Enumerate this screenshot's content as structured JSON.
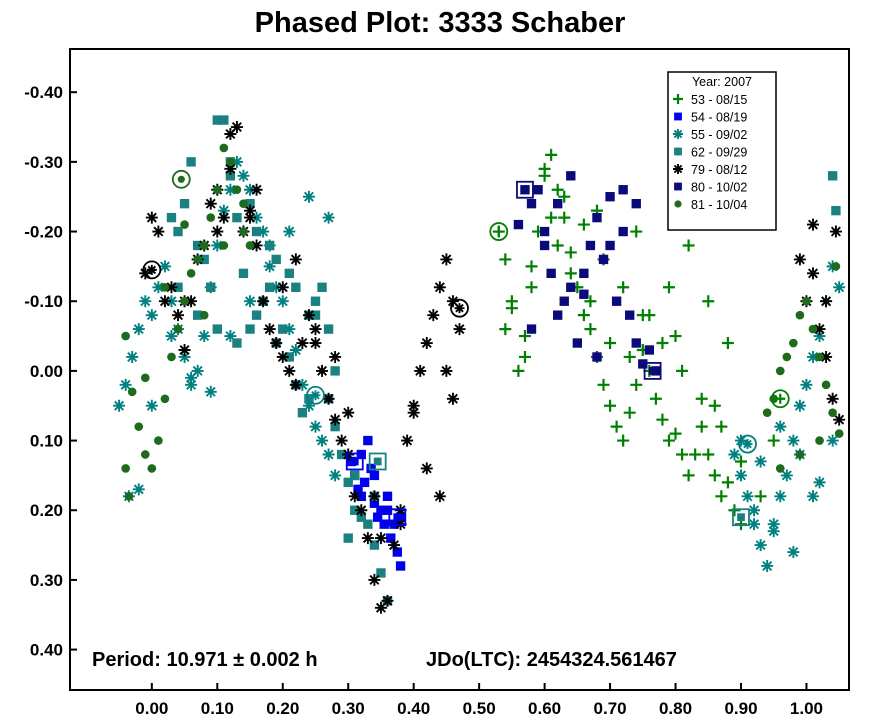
{
  "chart_data": {
    "type": "scatter",
    "title": "Phased Plot: 3333 Schaber",
    "xlabel": "",
    "ylabel": "",
    "xlim": [
      -0.125,
      1.065
    ],
    "ylim": [
      -0.462,
      0.458
    ],
    "y_inverted": true,
    "x_ticks": [
      "0.00",
      "0.10",
      "0.20",
      "0.30",
      "0.40",
      "0.50",
      "0.60",
      "0.70",
      "0.80",
      "0.90",
      "1.00"
    ],
    "y_ticks": [
      "-0.40",
      "-0.30",
      "-0.20",
      "-0.10",
      "0.00",
      "0.10",
      "0.20",
      "0.30",
      "0.40"
    ],
    "x_tick_values": [
      0,
      0.1,
      0.2,
      0.3,
      0.4,
      0.5,
      0.6,
      0.7,
      0.8,
      0.9,
      1.0
    ],
    "y_tick_values": [
      -0.4,
      -0.3,
      -0.2,
      -0.1,
      0,
      0.1,
      0.2,
      0.3,
      0.4
    ],
    "grid": false,
    "legend_position": "top-right",
    "legend_title": "Year: 2007",
    "annotations": {
      "period": "Period: 10.971 ± 0.002 h",
      "epoch": "JDo(LTC): 2454324.561467"
    },
    "series": [
      {
        "name": "53 - 08/15",
        "marker": "plus",
        "color": "#008000",
        "x": [
          0.53,
          0.54,
          0.55,
          0.56,
          0.57,
          0.58,
          0.59,
          0.6,
          0.61,
          0.62,
          0.63,
          0.64,
          0.65,
          0.66,
          0.67,
          0.68,
          0.69,
          0.7,
          0.71,
          0.72,
          0.73,
          0.74,
          0.75,
          0.76,
          0.77,
          0.78,
          0.79,
          0.8,
          0.81,
          0.82,
          0.83,
          0.84,
          0.85,
          0.86,
          0.87,
          0.88,
          0.89,
          0.9,
          0.55,
          0.58,
          0.61,
          0.64,
          0.67,
          0.7,
          0.73,
          0.76,
          0.79,
          0.82,
          0.85,
          0.88,
          0.6,
          0.63,
          0.66,
          0.69,
          0.72,
          0.75,
          0.78,
          0.81,
          0.84,
          0.87,
          0.9,
          0.54,
          0.57,
          0.62,
          0.68,
          0.74,
          0.8,
          0.86,
          0.93,
          0.95
        ],
        "y": [
          -0.2,
          -0.16,
          -0.09,
          0.0,
          -0.05,
          -0.12,
          -0.2,
          -0.28,
          -0.31,
          -0.26,
          -0.22,
          -0.17,
          -0.12,
          -0.08,
          -0.06,
          -0.02,
          0.02,
          0.05,
          0.08,
          0.1,
          0.06,
          0.02,
          -0.03,
          0.0,
          0.04,
          0.07,
          0.1,
          0.09,
          0.12,
          0.15,
          0.12,
          0.08,
          0.12,
          0.15,
          0.18,
          0.16,
          0.2,
          0.22,
          -0.1,
          -0.15,
          -0.22,
          -0.14,
          -0.1,
          -0.04,
          -0.02,
          -0.08,
          -0.12,
          -0.18,
          -0.1,
          -0.04,
          -0.29,
          -0.25,
          -0.21,
          -0.16,
          -0.12,
          -0.08,
          -0.04,
          0.0,
          0.04,
          0.08,
          0.13,
          -0.06,
          -0.02,
          -0.18,
          -0.23,
          -0.2,
          -0.05,
          0.05,
          0.18,
          0.1
        ]
      },
      {
        "name": "54 - 08/19",
        "marker": "square",
        "color": "#0000ee",
        "x": [
          0.305,
          0.31,
          0.315,
          0.32,
          0.325,
          0.33,
          0.335,
          0.34,
          0.345,
          0.35,
          0.355,
          0.36,
          0.365,
          0.37,
          0.375,
          0.38,
          0.32,
          0.34,
          0.36,
          0.38
        ],
        "y": [
          0.13,
          0.15,
          0.17,
          0.18,
          0.16,
          0.1,
          0.14,
          0.19,
          0.21,
          0.2,
          0.22,
          0.2,
          0.24,
          0.22,
          0.26,
          0.28,
          0.12,
          0.15,
          0.18,
          0.21
        ]
      },
      {
        "name": "55 - 09/02",
        "marker": "asterisk",
        "color": "#008080",
        "x": [
          -0.05,
          -0.04,
          -0.03,
          -0.02,
          -0.01,
          0.0,
          0.01,
          0.02,
          0.03,
          0.04,
          0.05,
          0.06,
          0.07,
          0.08,
          0.09,
          0.1,
          0.11,
          0.12,
          0.13,
          0.14,
          0.15,
          0.16,
          0.17,
          0.18,
          0.19,
          0.2,
          0.21,
          0.22,
          0.23,
          0.24,
          0.25,
          0.26,
          0.27,
          0.28,
          -0.035,
          -0.02,
          0.0,
          0.03,
          0.06,
          0.09,
          0.12,
          0.15,
          0.18,
          0.21,
          0.24,
          0.27,
          0.89,
          0.9,
          0.91,
          0.92,
          0.93,
          0.94,
          0.95,
          0.96,
          0.97,
          0.98,
          0.99,
          1.0,
          1.01,
          1.02,
          1.03,
          1.04,
          1.05,
          0.92,
          0.95,
          0.98,
          1.01,
          1.04,
          0.9,
          0.93,
          0.96,
          0.99,
          1.02
        ],
        "y": [
          0.05,
          0.02,
          -0.02,
          -0.06,
          -0.1,
          -0.08,
          -0.12,
          -0.15,
          -0.1,
          -0.06,
          -0.02,
          0.02,
          0.0,
          -0.05,
          -0.12,
          -0.18,
          -0.23,
          -0.26,
          -0.3,
          -0.28,
          -0.26,
          -0.22,
          -0.2,
          -0.18,
          -0.12,
          -0.1,
          -0.06,
          -0.03,
          0.02,
          0.05,
          0.08,
          0.1,
          0.12,
          0.15,
          0.18,
          0.17,
          0.05,
          -0.05,
          0.01,
          0.03,
          -0.05,
          -0.1,
          -0.15,
          -0.2,
          -0.25,
          -0.22,
          0.12,
          0.15,
          0.18,
          0.22,
          0.25,
          0.28,
          0.22,
          0.18,
          0.15,
          0.1,
          0.05,
          0.02,
          -0.02,
          -0.05,
          -0.1,
          -0.15,
          -0.12,
          0.2,
          0.23,
          0.26,
          0.18,
          0.1,
          0.1,
          0.13,
          0.08,
          0.12,
          0.16
        ]
      },
      {
        "name": "62 - 09/29",
        "marker": "square",
        "color": "#1a8080",
        "x": [
          0.03,
          0.04,
          0.05,
          0.06,
          0.07,
          0.08,
          0.09,
          0.1,
          0.11,
          0.12,
          0.13,
          0.14,
          0.15,
          0.16,
          0.17,
          0.18,
          0.19,
          0.2,
          0.21,
          0.22,
          0.23,
          0.24,
          0.25,
          0.26,
          0.27,
          0.28,
          0.29,
          0.3,
          0.31,
          0.32,
          0.33,
          0.34,
          0.35,
          0.36,
          0.04,
          0.07,
          0.1,
          0.13,
          0.16,
          0.19,
          0.22,
          0.25,
          0.28,
          0.31,
          0.34,
          0.12,
          0.15,
          0.18,
          0.21,
          0.24,
          0.27,
          0.3,
          1.04,
          1.045
        ],
        "y": [
          -0.22,
          -0.2,
          -0.24,
          -0.3,
          -0.18,
          -0.16,
          -0.12,
          -0.36,
          -0.36,
          -0.28,
          -0.22,
          -0.14,
          -0.06,
          -0.08,
          -0.1,
          -0.12,
          -0.04,
          -0.06,
          -0.02,
          0.02,
          0.06,
          0.04,
          -0.1,
          -0.12,
          -0.06,
          0.0,
          0.12,
          0.16,
          0.2,
          0.21,
          0.22,
          0.25,
          0.29,
          0.33,
          -0.12,
          -0.08,
          -0.06,
          -0.04,
          -0.2,
          -0.16,
          -0.12,
          -0.08,
          0.08,
          0.15,
          0.18,
          -0.3,
          -0.24,
          -0.18,
          -0.14,
          -0.08,
          0.04,
          0.24,
          -0.28,
          -0.23
        ]
      },
      {
        "name": "79 - 08/12",
        "marker": "asterisk",
        "color": "#000000",
        "x": [
          -0.01,
          0.0,
          0.01,
          0.02,
          0.03,
          0.04,
          0.05,
          0.06,
          0.07,
          0.08,
          0.09,
          0.1,
          0.11,
          0.12,
          0.13,
          0.14,
          0.15,
          0.16,
          0.17,
          0.18,
          0.19,
          0.2,
          0.21,
          0.22,
          0.23,
          0.24,
          0.25,
          0.26,
          0.27,
          0.28,
          0.29,
          0.3,
          0.31,
          0.32,
          0.33,
          0.34,
          0.35,
          0.36,
          0.37,
          0.38,
          0.39,
          0.4,
          0.41,
          0.42,
          0.43,
          0.44,
          0.45,
          0.46,
          0.47,
          0.05,
          0.1,
          0.15,
          0.2,
          0.25,
          0.3,
          0.35,
          0.4,
          0.45,
          0.12,
          0.16,
          0.22,
          0.28,
          0.34,
          0.38,
          0.42,
          0.44,
          0.46,
          1.0,
          1.01,
          1.02,
          1.03,
          1.04,
          1.05,
          0.99,
          1.01,
          1.03,
          1.045
        ],
        "y": [
          -0.14,
          -0.22,
          -0.2,
          -0.1,
          -0.12,
          -0.08,
          -0.03,
          -0.1,
          -0.16,
          -0.18,
          -0.24,
          -0.26,
          -0.22,
          -0.34,
          -0.35,
          -0.2,
          -0.22,
          -0.18,
          -0.1,
          -0.06,
          -0.04,
          -0.02,
          0.0,
          0.02,
          -0.04,
          -0.08,
          -0.06,
          0.0,
          0.04,
          0.07,
          0.1,
          0.12,
          0.18,
          0.2,
          0.24,
          0.3,
          0.34,
          0.33,
          0.25,
          0.2,
          0.1,
          0.05,
          0.0,
          -0.04,
          -0.08,
          -0.12,
          -0.16,
          -0.1,
          -0.06,
          -0.1,
          -0.2,
          -0.23,
          -0.12,
          -0.04,
          0.06,
          0.24,
          0.06,
          0.0,
          -0.29,
          -0.26,
          -0.16,
          -0.02,
          0.18,
          0.22,
          0.14,
          0.18,
          0.04,
          -0.1,
          -0.14,
          -0.06,
          -0.02,
          0.04,
          0.07,
          -0.16,
          -0.21,
          -0.1,
          -0.2
        ]
      },
      {
        "name": "80 - 10/02",
        "marker": "square",
        "color": "#0a0a7a",
        "x": [
          0.57,
          0.58,
          0.59,
          0.6,
          0.61,
          0.62,
          0.63,
          0.64,
          0.65,
          0.66,
          0.67,
          0.68,
          0.69,
          0.7,
          0.71,
          0.72,
          0.73,
          0.74,
          0.75,
          0.76,
          0.77,
          0.56,
          0.6,
          0.64,
          0.68,
          0.72,
          0.62,
          0.66,
          0.7,
          0.58,
          0.74
        ],
        "y": [
          -0.26,
          -0.24,
          -0.26,
          -0.18,
          -0.14,
          -0.08,
          -0.1,
          -0.12,
          -0.04,
          -0.14,
          -0.18,
          -0.22,
          -0.16,
          -0.25,
          -0.1,
          -0.2,
          -0.08,
          -0.04,
          -0.01,
          -0.03,
          0.0,
          -0.21,
          -0.2,
          -0.28,
          -0.02,
          -0.26,
          -0.24,
          -0.11,
          -0.18,
          -0.06,
          -0.24
        ]
      },
      {
        "name": "81 - 10/04",
        "marker": "circle",
        "color": "#1e6b1e",
        "x": [
          -0.04,
          -0.035,
          -0.03,
          -0.02,
          -0.01,
          0.0,
          0.01,
          0.02,
          0.03,
          0.04,
          0.05,
          0.06,
          0.07,
          0.08,
          0.09,
          0.1,
          0.11,
          0.12,
          0.13,
          0.14,
          0.15,
          -0.04,
          -0.01,
          0.02,
          0.05,
          0.08,
          0.11,
          0.14,
          0.94,
          0.95,
          0.96,
          0.97,
          0.98,
          0.99,
          1.0,
          1.01,
          1.02,
          1.03,
          1.04,
          1.05,
          0.96,
          0.99,
          1.02,
          1.045
        ],
        "y": [
          0.14,
          0.18,
          0.03,
          0.08,
          0.12,
          0.14,
          0.1,
          0.04,
          -0.02,
          -0.06,
          -0.1,
          -0.14,
          -0.16,
          -0.18,
          -0.22,
          -0.26,
          -0.32,
          -0.3,
          -0.26,
          -0.2,
          -0.18,
          -0.05,
          0.01,
          -0.12,
          -0.21,
          -0.08,
          -0.18,
          -0.24,
          0.06,
          0.04,
          0.0,
          -0.02,
          -0.04,
          -0.08,
          -0.1,
          -0.06,
          -0.02,
          0.02,
          0.06,
          0.09,
          0.14,
          0.12,
          0.1,
          -0.15
        ]
      }
    ],
    "highlighted_points": [
      {
        "series": "53 - 08/15",
        "x": 0.53,
        "y": -0.2
      },
      {
        "series": "53 - 08/15",
        "x": 0.96,
        "y": 0.04
      },
      {
        "series": "54 - 08/19",
        "x": 0.31,
        "y": 0.13
      },
      {
        "series": "54 - 08/19",
        "x": 0.375,
        "y": 0.21
      },
      {
        "series": "55 - 09/02",
        "x": 0.91,
        "y": 0.105
      },
      {
        "series": "55 - 09/02",
        "x": 0.25,
        "y": 0.035
      },
      {
        "series": "62 - 09/29",
        "x": 0.345,
        "y": 0.13
      },
      {
        "series": "62 - 09/29",
        "x": 0.9,
        "y": 0.21
      },
      {
        "series": "79 - 08/12",
        "x": 0.47,
        "y": -0.09
      },
      {
        "series": "79 - 08/12",
        "x": 0.0,
        "y": -0.145
      },
      {
        "series": "80 - 10/02",
        "x": 0.57,
        "y": -0.26
      },
      {
        "series": "80 - 10/02",
        "x": 0.765,
        "y": 0.0
      },
      {
        "series": "81 - 10/04",
        "x": 0.045,
        "y": -0.275
      }
    ]
  }
}
